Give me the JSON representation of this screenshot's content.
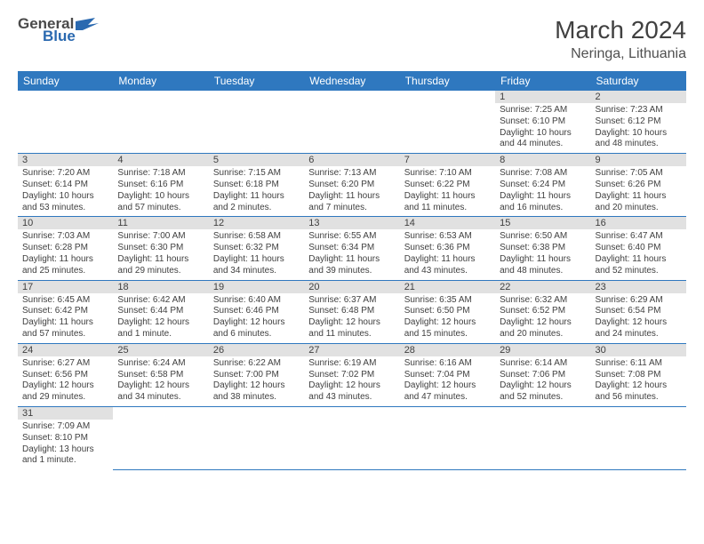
{
  "brand": {
    "word1": "General",
    "word2": "Blue"
  },
  "title": "March 2024",
  "location": "Neringa, Lithuania",
  "colors": {
    "header_bg": "#2f78bf",
    "header_fg": "#ffffff",
    "daynum_bg": "#e1e1e1",
    "text": "#404040",
    "divider": "#2f78bf",
    "page_bg": "#ffffff",
    "logo_blue": "#2a69b0",
    "logo_gray": "#4a4a4a"
  },
  "weekdays": [
    "Sunday",
    "Monday",
    "Tuesday",
    "Wednesday",
    "Thursday",
    "Friday",
    "Saturday"
  ],
  "weeks": [
    [
      null,
      null,
      null,
      null,
      null,
      {
        "n": "1",
        "sunrise": "Sunrise: 7:25 AM",
        "sunset": "Sunset: 6:10 PM",
        "daylight": "Daylight: 10 hours and 44 minutes."
      },
      {
        "n": "2",
        "sunrise": "Sunrise: 7:23 AM",
        "sunset": "Sunset: 6:12 PM",
        "daylight": "Daylight: 10 hours and 48 minutes."
      }
    ],
    [
      {
        "n": "3",
        "sunrise": "Sunrise: 7:20 AM",
        "sunset": "Sunset: 6:14 PM",
        "daylight": "Daylight: 10 hours and 53 minutes."
      },
      {
        "n": "4",
        "sunrise": "Sunrise: 7:18 AM",
        "sunset": "Sunset: 6:16 PM",
        "daylight": "Daylight: 10 hours and 57 minutes."
      },
      {
        "n": "5",
        "sunrise": "Sunrise: 7:15 AM",
        "sunset": "Sunset: 6:18 PM",
        "daylight": "Daylight: 11 hours and 2 minutes."
      },
      {
        "n": "6",
        "sunrise": "Sunrise: 7:13 AM",
        "sunset": "Sunset: 6:20 PM",
        "daylight": "Daylight: 11 hours and 7 minutes."
      },
      {
        "n": "7",
        "sunrise": "Sunrise: 7:10 AM",
        "sunset": "Sunset: 6:22 PM",
        "daylight": "Daylight: 11 hours and 11 minutes."
      },
      {
        "n": "8",
        "sunrise": "Sunrise: 7:08 AM",
        "sunset": "Sunset: 6:24 PM",
        "daylight": "Daylight: 11 hours and 16 minutes."
      },
      {
        "n": "9",
        "sunrise": "Sunrise: 7:05 AM",
        "sunset": "Sunset: 6:26 PM",
        "daylight": "Daylight: 11 hours and 20 minutes."
      }
    ],
    [
      {
        "n": "10",
        "sunrise": "Sunrise: 7:03 AM",
        "sunset": "Sunset: 6:28 PM",
        "daylight": "Daylight: 11 hours and 25 minutes."
      },
      {
        "n": "11",
        "sunrise": "Sunrise: 7:00 AM",
        "sunset": "Sunset: 6:30 PM",
        "daylight": "Daylight: 11 hours and 29 minutes."
      },
      {
        "n": "12",
        "sunrise": "Sunrise: 6:58 AM",
        "sunset": "Sunset: 6:32 PM",
        "daylight": "Daylight: 11 hours and 34 minutes."
      },
      {
        "n": "13",
        "sunrise": "Sunrise: 6:55 AM",
        "sunset": "Sunset: 6:34 PM",
        "daylight": "Daylight: 11 hours and 39 minutes."
      },
      {
        "n": "14",
        "sunrise": "Sunrise: 6:53 AM",
        "sunset": "Sunset: 6:36 PM",
        "daylight": "Daylight: 11 hours and 43 minutes."
      },
      {
        "n": "15",
        "sunrise": "Sunrise: 6:50 AM",
        "sunset": "Sunset: 6:38 PM",
        "daylight": "Daylight: 11 hours and 48 minutes."
      },
      {
        "n": "16",
        "sunrise": "Sunrise: 6:47 AM",
        "sunset": "Sunset: 6:40 PM",
        "daylight": "Daylight: 11 hours and 52 minutes."
      }
    ],
    [
      {
        "n": "17",
        "sunrise": "Sunrise: 6:45 AM",
        "sunset": "Sunset: 6:42 PM",
        "daylight": "Daylight: 11 hours and 57 minutes."
      },
      {
        "n": "18",
        "sunrise": "Sunrise: 6:42 AM",
        "sunset": "Sunset: 6:44 PM",
        "daylight": "Daylight: 12 hours and 1 minute."
      },
      {
        "n": "19",
        "sunrise": "Sunrise: 6:40 AM",
        "sunset": "Sunset: 6:46 PM",
        "daylight": "Daylight: 12 hours and 6 minutes."
      },
      {
        "n": "20",
        "sunrise": "Sunrise: 6:37 AM",
        "sunset": "Sunset: 6:48 PM",
        "daylight": "Daylight: 12 hours and 11 minutes."
      },
      {
        "n": "21",
        "sunrise": "Sunrise: 6:35 AM",
        "sunset": "Sunset: 6:50 PM",
        "daylight": "Daylight: 12 hours and 15 minutes."
      },
      {
        "n": "22",
        "sunrise": "Sunrise: 6:32 AM",
        "sunset": "Sunset: 6:52 PM",
        "daylight": "Daylight: 12 hours and 20 minutes."
      },
      {
        "n": "23",
        "sunrise": "Sunrise: 6:29 AM",
        "sunset": "Sunset: 6:54 PM",
        "daylight": "Daylight: 12 hours and 24 minutes."
      }
    ],
    [
      {
        "n": "24",
        "sunrise": "Sunrise: 6:27 AM",
        "sunset": "Sunset: 6:56 PM",
        "daylight": "Daylight: 12 hours and 29 minutes."
      },
      {
        "n": "25",
        "sunrise": "Sunrise: 6:24 AM",
        "sunset": "Sunset: 6:58 PM",
        "daylight": "Daylight: 12 hours and 34 minutes."
      },
      {
        "n": "26",
        "sunrise": "Sunrise: 6:22 AM",
        "sunset": "Sunset: 7:00 PM",
        "daylight": "Daylight: 12 hours and 38 minutes."
      },
      {
        "n": "27",
        "sunrise": "Sunrise: 6:19 AM",
        "sunset": "Sunset: 7:02 PM",
        "daylight": "Daylight: 12 hours and 43 minutes."
      },
      {
        "n": "28",
        "sunrise": "Sunrise: 6:16 AM",
        "sunset": "Sunset: 7:04 PM",
        "daylight": "Daylight: 12 hours and 47 minutes."
      },
      {
        "n": "29",
        "sunrise": "Sunrise: 6:14 AM",
        "sunset": "Sunset: 7:06 PM",
        "daylight": "Daylight: 12 hours and 52 minutes."
      },
      {
        "n": "30",
        "sunrise": "Sunrise: 6:11 AM",
        "sunset": "Sunset: 7:08 PM",
        "daylight": "Daylight: 12 hours and 56 minutes."
      }
    ],
    [
      {
        "n": "31",
        "sunrise": "Sunrise: 7:09 AM",
        "sunset": "Sunset: 8:10 PM",
        "daylight": "Daylight: 13 hours and 1 minute."
      },
      null,
      null,
      null,
      null,
      null,
      null
    ]
  ]
}
